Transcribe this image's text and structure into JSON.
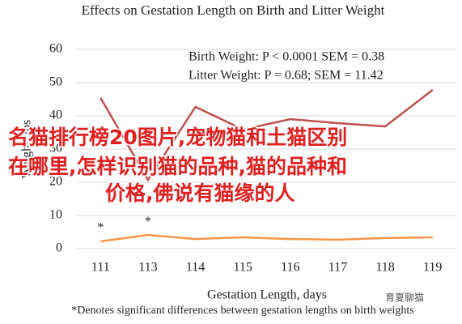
{
  "chart_data": {
    "type": "line",
    "title": "Effects on Gestation Length on Birth and Litter Weight",
    "x_label": "Gestation Length, days",
    "y_label": "Weight, lbs",
    "categories": [
      "111",
      "113",
      "114",
      "115",
      "116",
      "117",
      "118",
      "119"
    ],
    "series": [
      {
        "color": "#c0504d",
        "values": [
          45.4,
          20.7,
          42.7,
          35.9,
          39,
          37.8,
          36.8,
          47.8
        ]
      },
      {
        "color": "#f79646",
        "values": [
          2.2,
          4.1,
          2.9,
          3.4,
          2.9,
          2.7,
          3.2,
          3.4
        ]
      }
    ],
    "ylim": [
      0,
      60
    ],
    "yticks": [
      0,
      10,
      20,
      30,
      40,
      50,
      60
    ],
    "grid": true,
    "stats_notes": [
      "Birth Weight: P < 0.0001 SEM = 0.38",
      "Litter Weight: P = 0.68; SEM = 11.42"
    ],
    "point_annotations": [
      {
        "text": "*",
        "category": "111"
      },
      {
        "text": "*",
        "category": "113"
      }
    ],
    "footnote": "*Denotes significant differences between gestation lengths on birth weights"
  },
  "overlay": {
    "lines": [
      "名猫排行榜20图片,宠物猫和土猫区别",
      "在哪里,怎样识别猫的品种,猫的品种和",
      "价格,佛说有猫缘的人"
    ]
  },
  "watermark": "育夏聊猫"
}
